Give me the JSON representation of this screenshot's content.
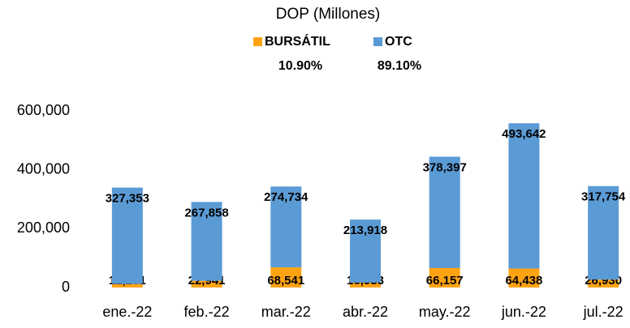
{
  "chart_data": {
    "type": "stacked_bar",
    "title": "DOP (Millones)",
    "categories": [
      "ene.-22",
      "feb.-22",
      "mar.-22",
      "abr.-22",
      "may.-22",
      "jun.-22",
      "jul.-22"
    ],
    "series": [
      {
        "name": "BURSÁTIL",
        "color": "#ffa312",
        "share": "10.90%",
        "values": [
          12231,
          22941,
          68541,
          16933,
          66157,
          64438,
          26930
        ],
        "value_labels": [
          "12,231",
          "22,941",
          "68,541",
          "16,933",
          "66,157",
          "64,438",
          "26,930"
        ]
      },
      {
        "name": "OTC",
        "color": "#5b9bd5",
        "share": "89.10%",
        "values": [
          327353,
          267858,
          274734,
          213918,
          378397,
          493642,
          317754
        ],
        "value_labels": [
          "327,353",
          "267,858",
          "274,734",
          "213,918",
          "378,397",
          "493,642",
          "317,754"
        ]
      }
    ],
    "ylim": [
      0,
      600000
    ],
    "yticks": [
      0,
      {
        "value": 200000,
        "label": "200,000"
      },
      {
        "value": 400000,
        "label": "400,000"
      },
      {
        "value": 600000,
        "label": "600,000"
      }
    ],
    "grid": false
  }
}
